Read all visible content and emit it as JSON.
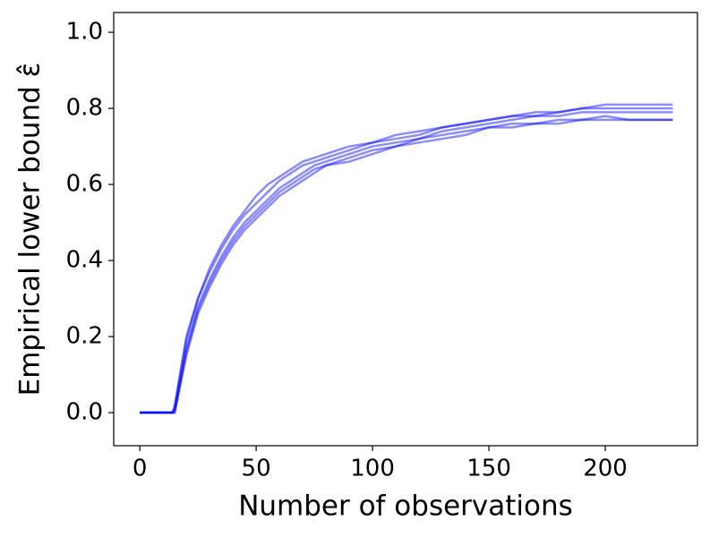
{
  "chart_data": {
    "type": "line",
    "x_label": "Number of observations",
    "y_label": "Empirical lower bound ε̂",
    "x": [
      0,
      5,
      10,
      14,
      15,
      20,
      25,
      30,
      35,
      40,
      45,
      50,
      55,
      60,
      65,
      70,
      75,
      80,
      90,
      100,
      110,
      120,
      130,
      140,
      150,
      160,
      170,
      180,
      190,
      200,
      210,
      220,
      229
    ],
    "series": [
      {
        "color": "#0000ff",
        "values": [
          0,
          0,
          0,
          0,
          0.02,
          0.2,
          0.3,
          0.37,
          0.43,
          0.48,
          0.52,
          0.55,
          0.58,
          0.61,
          0.63,
          0.65,
          0.66,
          0.67,
          0.69,
          0.71,
          0.72,
          0.73,
          0.75,
          0.76,
          0.77,
          0.78,
          0.79,
          0.79,
          0.8,
          0.81,
          0.81,
          0.81,
          0.81
        ]
      },
      {
        "color": "#0000ff",
        "values": [
          0,
          0,
          0,
          0,
          0.01,
          0.17,
          0.28,
          0.35,
          0.41,
          0.46,
          0.5,
          0.53,
          0.56,
          0.59,
          0.61,
          0.63,
          0.65,
          0.66,
          0.68,
          0.7,
          0.71,
          0.72,
          0.74,
          0.75,
          0.76,
          0.77,
          0.78,
          0.78,
          0.79,
          0.79,
          0.79,
          0.79,
          0.79
        ]
      },
      {
        "color": "#0000ff",
        "values": [
          0,
          0,
          0,
          0,
          0,
          0.15,
          0.26,
          0.33,
          0.39,
          0.44,
          0.48,
          0.51,
          0.54,
          0.57,
          0.59,
          0.61,
          0.63,
          0.65,
          0.66,
          0.68,
          0.7,
          0.71,
          0.72,
          0.73,
          0.75,
          0.75,
          0.76,
          0.76,
          0.77,
          0.77,
          0.77,
          0.77,
          0.77
        ]
      },
      {
        "color": "#0000ff",
        "values": [
          0,
          0,
          0,
          0,
          0.01,
          0.19,
          0.3,
          0.38,
          0.44,
          0.49,
          0.53,
          0.57,
          0.6,
          0.62,
          0.64,
          0.66,
          0.67,
          0.68,
          0.7,
          0.71,
          0.73,
          0.74,
          0.75,
          0.76,
          0.77,
          0.78,
          0.78,
          0.79,
          0.8,
          0.8,
          0.8,
          0.8,
          0.8
        ]
      },
      {
        "color": "#0000ff",
        "values": [
          0,
          0,
          0,
          0,
          0,
          0.16,
          0.27,
          0.34,
          0.4,
          0.45,
          0.49,
          0.52,
          0.55,
          0.58,
          0.6,
          0.62,
          0.64,
          0.65,
          0.67,
          0.69,
          0.7,
          0.72,
          0.73,
          0.74,
          0.75,
          0.76,
          0.76,
          0.77,
          0.77,
          0.78,
          0.77,
          0.77,
          0.77
        ]
      }
    ],
    "xlim": [
      -11.2,
      239.6
    ],
    "ylim": [
      -0.087,
      1.052
    ],
    "xticks": [
      0,
      50,
      100,
      150,
      200
    ],
    "yticks": [
      {
        "value": 0,
        "label": "0.0"
      },
      0.2,
      0.4,
      0.6,
      0.8,
      {
        "value": 1,
        "label": "1.0"
      }
    ],
    "grid": false
  }
}
